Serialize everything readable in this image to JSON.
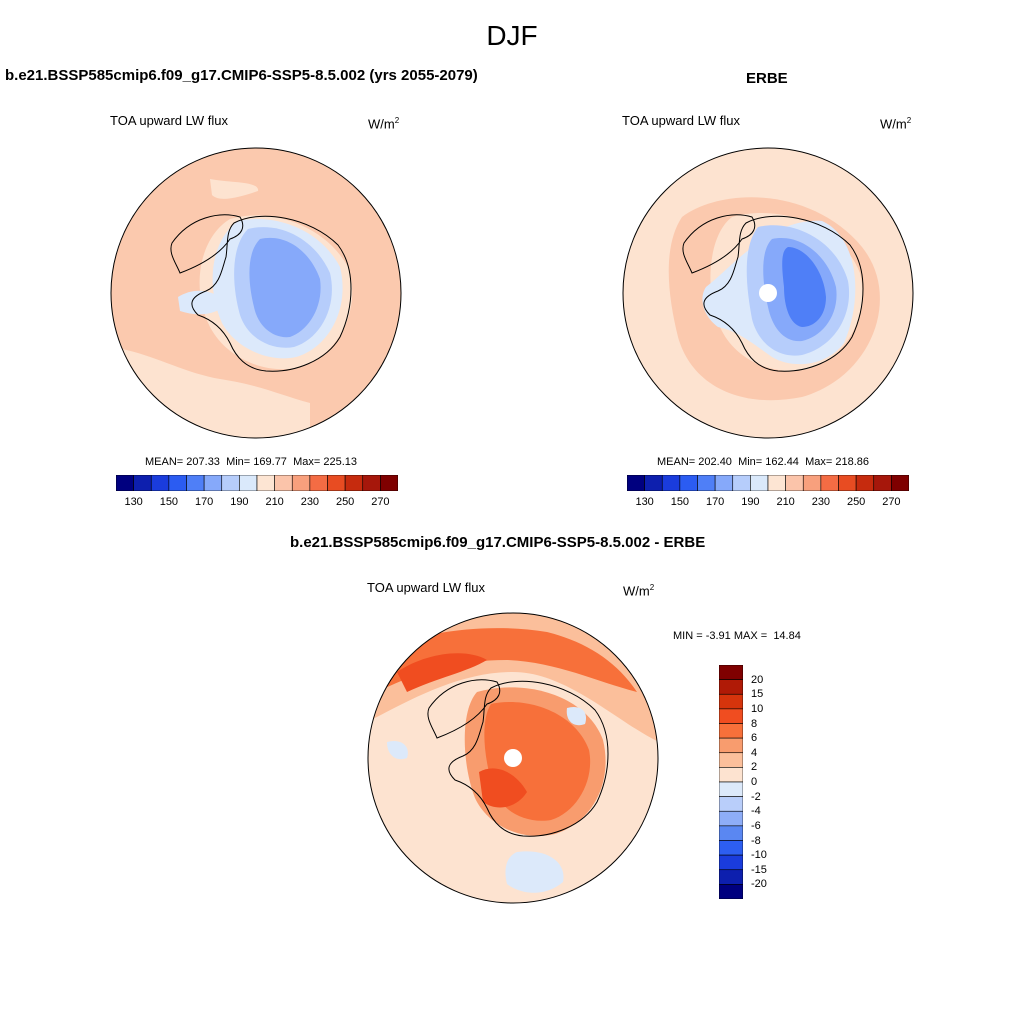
{
  "figure": {
    "season": "DJF"
  },
  "panels": {
    "model": {
      "title": "b.e21.BSSP585cmip6.f09_g17.CMIP6-SSP5-8.5.002 (yrs 2055-2079)",
      "variable": "TOA upward LW flux",
      "units_base": "W/m",
      "units_exp": "2",
      "stats": {
        "mean_label": "MEAN=",
        "mean": "207.33",
        "min_label": "Min=",
        "min": "169.77",
        "max_label": "Max=",
        "max": "225.13"
      }
    },
    "obs": {
      "title": "ERBE",
      "variable": "TOA upward LW flux",
      "units_base": "W/m",
      "units_exp": "2",
      "stats": {
        "mean_label": "MEAN=",
        "mean": "202.40",
        "min_label": "Min=",
        "min": "162.44",
        "max_label": "Max=",
        "max": "218.86"
      }
    },
    "diff": {
      "title": "b.e21.BSSP585cmip6.f09_g17.CMIP6-SSP5-8.5.002 - ERBE",
      "variable": "TOA upward LW flux",
      "units_base": "W/m",
      "units_exp": "2",
      "stats": {
        "min_label": "MIN =",
        "min": "-3.91",
        "max_label": "MAX =",
        "max": "14.84"
      }
    }
  },
  "colorbars": {
    "absolute": {
      "colors": [
        "#00007f",
        "#0d1fae",
        "#1a3cdc",
        "#2b5cf2",
        "#4f7ff7",
        "#86a9fa",
        "#b6cdfb",
        "#dae9fb",
        "#fde5d3",
        "#fbc4aa",
        "#f8a07d",
        "#f46c44",
        "#e84c22",
        "#c62b0e",
        "#a6170b",
        "#7f0000"
      ],
      "tick_labels": [
        "130",
        "150",
        "170",
        "190",
        "210",
        "230",
        "250",
        "270"
      ]
    },
    "difference": {
      "colors": [
        "#7f0000",
        "#b01a06",
        "#d6340c",
        "#f04d20",
        "#f7703a",
        "#f89c6e",
        "#fbbf9b",
        "#fde3d0",
        "#dce9fa",
        "#b9cefa",
        "#8eadf7",
        "#5a87f2",
        "#2d5ef0",
        "#1a3cdc",
        "#0d1fae",
        "#00007f"
      ],
      "tick_labels": [
        "20",
        "15",
        "10",
        "8",
        "6",
        "4",
        "2",
        "0",
        "-2",
        "-4",
        "-6",
        "-8",
        "-10",
        "-15",
        "-20"
      ]
    }
  },
  "map_colors": {
    "ocean_base": "#fbc9ae",
    "ocean_light": "#fde3d0",
    "ice_light": "#dce9fb",
    "ice_mid": "#b6cdfb",
    "ice_dark": "#86a9fa",
    "ice_core": "#4f7ff7",
    "diff_base": "#fde3d0",
    "diff_warm1": "#fbbf9b",
    "diff_warm2": "#f89c6e",
    "diff_warm3": "#f7703a",
    "diff_warm4": "#f04d20",
    "diff_cool": "#dce9fa",
    "missing": "#ffffff"
  }
}
